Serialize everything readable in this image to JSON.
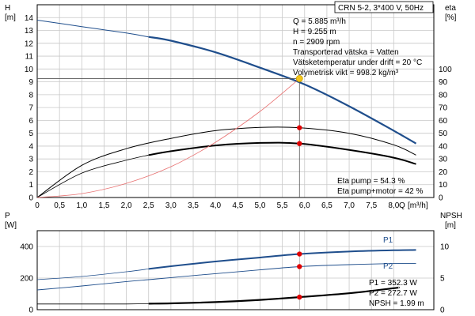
{
  "chart_data": {
    "type": "line",
    "product_label": "CRN 5-2, 3*400 V, 50Hz",
    "x_axis": {
      "label": "Q",
      "unit": "[m³/h]",
      "xlim": [
        0,
        8.9
      ],
      "ticks": [
        0,
        0.5,
        1,
        1.5,
        2,
        2.5,
        3,
        3.5,
        4,
        4.5,
        5,
        5.5,
        6,
        6.5,
        7,
        7.5,
        8
      ],
      "tick_labels": [
        "0",
        "0,5",
        "1,0",
        "1,5",
        "2,0",
        "2,5",
        "3,0",
        "3,5",
        "4,0",
        "4,5",
        "5,0",
        "5,5",
        "6,0",
        "6,5",
        "7,0",
        "7,5",
        "8,0"
      ]
    },
    "upper_panel": {
      "left_axis": {
        "label": "H",
        "unit": "[m]",
        "ylim": [
          0,
          15
        ],
        "ticks": [
          0,
          1,
          2,
          3,
          4,
          5,
          6,
          7,
          8,
          9,
          10,
          11,
          12,
          13,
          14
        ]
      },
      "right_axis": {
        "label": "eta",
        "unit": "[%]",
        "ylim": [
          0,
          150
        ],
        "ticks": [
          0,
          10,
          20,
          30,
          40,
          50,
          60,
          70,
          80,
          90,
          100
        ]
      },
      "series": [
        {
          "role": "head",
          "axis": "left",
          "color": "#1f4e8c",
          "x": [
            0,
            1,
            2,
            2.5,
            3,
            4,
            5,
            6,
            7,
            8,
            8.5
          ],
          "y": [
            13.8,
            13.3,
            12.8,
            12.5,
            12.2,
            11.3,
            10.1,
            8.8,
            7.1,
            5.2,
            4.2
          ]
        },
        {
          "role": "eta-pump",
          "axis": "right",
          "color": "#000000",
          "x": [
            0,
            1,
            2,
            3,
            4,
            5,
            5.885,
            7,
            8,
            8.5
          ],
          "y": [
            0,
            25,
            38,
            46,
            52,
            54.5,
            54.3,
            50,
            41,
            33
          ]
        },
        {
          "role": "eta-pump-motor",
          "axis": "right",
          "color": "#000000",
          "x": [
            0,
            1,
            2,
            2.5,
            3,
            4,
            5,
            5.885,
            7,
            8,
            8.5
          ],
          "y": [
            0,
            19,
            29,
            33,
            36,
            40.5,
            42.5,
            42,
            37,
            31,
            26
          ]
        },
        {
          "role": "system",
          "axis": "left",
          "color": "#e87070",
          "x": [
            0,
            1,
            2,
            3,
            4,
            5,
            5.885
          ],
          "y": [
            0,
            0.3,
            1.1,
            2.4,
            4.3,
            6.7,
            9.255
          ]
        }
      ],
      "duty_point": {
        "Q": 5.885,
        "H": 9.255,
        "eta_pump": 54.3,
        "eta_pump_motor": 42
      },
      "info_lines": [
        "Q = 5.885 m³/h",
        "H = 9.255 m",
        "n = 2909 rpm",
        "Transporterad vätska = Vatten",
        "Vätsketemperatur under drift = 20 °C",
        "Volymetrisk vikt = 998.2 kg/m³"
      ],
      "eta_lines": [
        "Eta pump = 54.3 %",
        "Eta pump+motor = 42 %"
      ]
    },
    "lower_panel": {
      "left_axis": {
        "label": "P",
        "unit": "[W]",
        "ylim": [
          0,
          500
        ],
        "ticks": [
          0,
          200,
          400
        ]
      },
      "right_axis": {
        "label": "NPSH",
        "unit": "[m]",
        "ylim": [
          0,
          12.5
        ],
        "ticks": [
          0,
          5,
          10
        ]
      },
      "series": [
        {
          "name": "P1",
          "axis": "left",
          "color": "#1f4e8c",
          "x": [
            0,
            1,
            2,
            2.5,
            3,
            4,
            5,
            5.885,
            7,
            8,
            8.5
          ],
          "y": [
            190,
            210,
            240,
            258,
            275,
            305,
            330,
            352.3,
            368,
            376,
            378
          ]
        },
        {
          "name": "P2",
          "axis": "left",
          "color": "#1f4e8c",
          "x": [
            0,
            1,
            2,
            2.5,
            3,
            4,
            5,
            5.885,
            7,
            8,
            8.5
          ],
          "y": [
            125,
            150,
            178,
            190,
            203,
            228,
            252,
            272.7,
            285,
            292,
            293
          ]
        },
        {
          "role": "npsh",
          "axis": "right",
          "color": "#000000",
          "x": [
            0,
            1,
            2,
            2.5,
            3,
            4,
            5,
            5.885,
            7,
            8,
            8.1
          ],
          "y": [
            0.9,
            0.9,
            0.9,
            0.95,
            1.0,
            1.2,
            1.55,
            1.99,
            2.6,
            3.4,
            3.5
          ]
        }
      ],
      "labels": [
        "P1",
        "P2"
      ],
      "info_lines": [
        "P1 = 352.3 W",
        "P2 = 272.7 W",
        "NPSH = 1.99 m"
      ]
    }
  }
}
